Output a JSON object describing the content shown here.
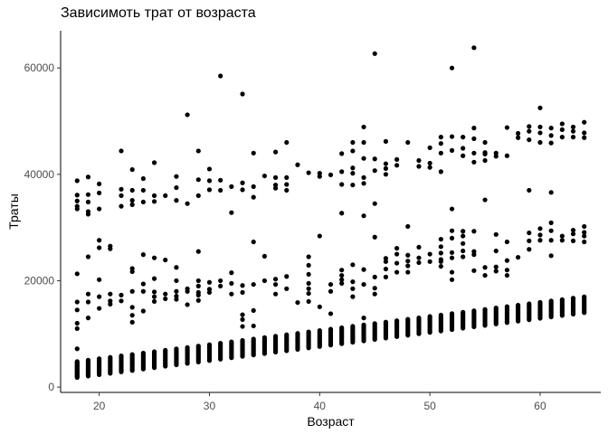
{
  "chart_data": {
    "type": "scatter",
    "title": "Зависимоть трат от возраста",
    "xlabel": "Возраст",
    "ylabel": "Траты",
    "xlim": [
      16.5,
      65.5
    ],
    "ylim": [
      -1000,
      67000
    ],
    "xticks": [
      20,
      30,
      40,
      50,
      60
    ],
    "yticks": [
      0,
      20000,
      40000,
      60000
    ],
    "xtick_labels": [
      "20",
      "30",
      "40",
      "50",
      "60"
    ],
    "ytick_labels": [
      "0",
      "20000",
      "40000",
      "60000"
    ],
    "grid": false,
    "point_color": "#000000",
    "x_range": [
      18,
      64
    ],
    "clusters": {
      "low": {
        "base_at_x18": 1800,
        "slope_per_year": 265,
        "spread": 3000
      },
      "mid": {
        "min": 10000,
        "max": 38000
      },
      "high": {
        "min": 32000,
        "max": 64000
      }
    },
    "points": [
      [
        18,
        7200
      ],
      [
        18,
        21300
      ],
      [
        18,
        16000
      ],
      [
        18,
        14500
      ],
      [
        18,
        12000
      ],
      [
        18,
        11000
      ],
      [
        18,
        38800
      ],
      [
        18,
        36100
      ],
      [
        18,
        35000
      ],
      [
        18,
        34000
      ],
      [
        18,
        33500
      ],
      [
        19,
        39500
      ],
      [
        19,
        36200
      ],
      [
        19,
        34800
      ],
      [
        19,
        33000
      ],
      [
        19,
        32500
      ],
      [
        19,
        24500
      ],
      [
        19,
        17500
      ],
      [
        19,
        16000
      ],
      [
        19,
        13000
      ],
      [
        20,
        38200
      ],
      [
        20,
        36500
      ],
      [
        20,
        33500
      ],
      [
        20,
        27600
      ],
      [
        20,
        26200
      ],
      [
        20,
        20200
      ],
      [
        20,
        17000
      ],
      [
        20,
        14800
      ],
      [
        21,
        26500
      ],
      [
        21,
        17500
      ],
      [
        21,
        16200
      ],
      [
        21,
        15600
      ],
      [
        21,
        26000
      ],
      [
        22,
        44400
      ],
      [
        22,
        37200
      ],
      [
        22,
        36000
      ],
      [
        22,
        34000
      ],
      [
        22,
        17300
      ],
      [
        22,
        16200
      ],
      [
        23,
        40900
      ],
      [
        23,
        37000
      ],
      [
        23,
        35100
      ],
      [
        23,
        34300
      ],
      [
        23,
        22300
      ],
      [
        23,
        21700
      ],
      [
        23,
        18000
      ],
      [
        23,
        15000
      ],
      [
        23,
        13500
      ],
      [
        23,
        12200
      ],
      [
        24,
        39200
      ],
      [
        24,
        37000
      ],
      [
        24,
        34800
      ],
      [
        24,
        24900
      ],
      [
        24,
        19400
      ],
      [
        24,
        18000
      ],
      [
        24,
        14300
      ],
      [
        25,
        42200
      ],
      [
        25,
        36000
      ],
      [
        25,
        34900
      ],
      [
        25,
        24300
      ],
      [
        25,
        20400
      ],
      [
        25,
        17900
      ],
      [
        25,
        17000
      ],
      [
        25,
        16100
      ],
      [
        26,
        36000
      ],
      [
        26,
        23900
      ],
      [
        26,
        17500
      ],
      [
        26,
        16600
      ],
      [
        27,
        39600
      ],
      [
        27,
        37500
      ],
      [
        27,
        35100
      ],
      [
        27,
        22500
      ],
      [
        27,
        20000
      ],
      [
        27,
        18000
      ],
      [
        27,
        17100
      ],
      [
        27,
        16500
      ],
      [
        28,
        51200
      ],
      [
        28,
        34500
      ],
      [
        28,
        18500
      ],
      [
        28,
        18000
      ],
      [
        28,
        15500
      ],
      [
        29,
        44400
      ],
      [
        29,
        39000
      ],
      [
        29,
        36000
      ],
      [
        29,
        25500
      ],
      [
        29,
        20000
      ],
      [
        29,
        19000
      ],
      [
        29,
        17800
      ],
      [
        29,
        17300
      ],
      [
        29,
        16300
      ],
      [
        30,
        41000
      ],
      [
        30,
        38800
      ],
      [
        30,
        37100
      ],
      [
        30,
        19700
      ],
      [
        30,
        18400
      ],
      [
        30,
        17800
      ],
      [
        31,
        58500
      ],
      [
        31,
        38900
      ],
      [
        31,
        37000
      ],
      [
        31,
        20000
      ],
      [
        31,
        19000
      ],
      [
        32,
        37700
      ],
      [
        32,
        32800
      ],
      [
        32,
        21500
      ],
      [
        32,
        19500
      ],
      [
        32,
        17500
      ],
      [
        33,
        55100
      ],
      [
        33,
        38400
      ],
      [
        33,
        37100
      ],
      [
        33,
        19100
      ],
      [
        33,
        17800
      ],
      [
        33,
        13600
      ],
      [
        33,
        12700
      ],
      [
        33,
        11400
      ],
      [
        34,
        44000
      ],
      [
        34,
        37700
      ],
      [
        34,
        35700
      ],
      [
        34,
        27300
      ],
      [
        34,
        19300
      ],
      [
        34,
        14400
      ],
      [
        34,
        11500
      ],
      [
        35,
        39700
      ],
      [
        35,
        24600
      ],
      [
        35,
        20000
      ],
      [
        36,
        44200
      ],
      [
        36,
        39400
      ],
      [
        36,
        38000
      ],
      [
        36,
        37400
      ],
      [
        36,
        20300
      ],
      [
        36,
        19300
      ],
      [
        36,
        17500
      ],
      [
        37,
        46000
      ],
      [
        37,
        39400
      ],
      [
        37,
        38100
      ],
      [
        37,
        37000
      ],
      [
        37,
        20800
      ],
      [
        37,
        18500
      ],
      [
        38,
        41800
      ],
      [
        38,
        15900
      ],
      [
        39,
        40300
      ],
      [
        39,
        24500
      ],
      [
        39,
        22900
      ],
      [
        39,
        21200
      ],
      [
        39,
        19500
      ],
      [
        39,
        18500
      ],
      [
        39,
        17600
      ],
      [
        39,
        16100
      ],
      [
        40,
        40200
      ],
      [
        40,
        39600
      ],
      [
        40,
        28400
      ],
      [
        40,
        15100
      ],
      [
        41,
        39900
      ],
      [
        41,
        19300
      ],
      [
        41,
        18000
      ],
      [
        41,
        13800
      ],
      [
        42,
        43900
      ],
      [
        42,
        40500
      ],
      [
        42,
        38100
      ],
      [
        42,
        32700
      ],
      [
        42,
        22000
      ],
      [
        42,
        21000
      ],
      [
        42,
        20200
      ],
      [
        42,
        19500
      ],
      [
        43,
        46000
      ],
      [
        43,
        44400
      ],
      [
        43,
        41200
      ],
      [
        43,
        40200
      ],
      [
        43,
        38000
      ],
      [
        43,
        23000
      ],
      [
        43,
        19800
      ],
      [
        43,
        18500
      ],
      [
        43,
        17000
      ],
      [
        44,
        48900
      ],
      [
        44,
        46000
      ],
      [
        44,
        43000
      ],
      [
        44,
        39400
      ],
      [
        44,
        38300
      ],
      [
        44,
        32200
      ],
      [
        44,
        22100
      ],
      [
        44,
        19300
      ],
      [
        44,
        13000
      ],
      [
        45,
        62700
      ],
      [
        45,
        42900
      ],
      [
        45,
        40700
      ],
      [
        45,
        34500
      ],
      [
        45,
        28200
      ],
      [
        45,
        20700
      ],
      [
        45,
        18600
      ],
      [
        45,
        17500
      ],
      [
        46,
        46200
      ],
      [
        46,
        42000
      ],
      [
        46,
        41100
      ],
      [
        46,
        40000
      ],
      [
        46,
        24200
      ],
      [
        46,
        23600
      ],
      [
        46,
        22200
      ],
      [
        46,
        20700
      ],
      [
        47,
        42800
      ],
      [
        47,
        41700
      ],
      [
        47,
        26100
      ],
      [
        47,
        25000
      ],
      [
        47,
        23300
      ],
      [
        47,
        21600
      ],
      [
        48,
        46000
      ],
      [
        48,
        30200
      ],
      [
        48,
        24800
      ],
      [
        48,
        23700
      ],
      [
        48,
        22800
      ],
      [
        48,
        21600
      ],
      [
        49,
        42600
      ],
      [
        49,
        41500
      ],
      [
        49,
        26300
      ],
      [
        49,
        24300
      ],
      [
        49,
        23400
      ],
      [
        50,
        45000
      ],
      [
        50,
        42100
      ],
      [
        50,
        41300
      ],
      [
        50,
        25000
      ],
      [
        50,
        23600
      ],
      [
        51,
        47000
      ],
      [
        51,
        45800
      ],
      [
        51,
        44000
      ],
      [
        51,
        40500
      ],
      [
        51,
        27800
      ],
      [
        51,
        26400
      ],
      [
        51,
        25200
      ],
      [
        51,
        24000
      ],
      [
        51,
        23600
      ],
      [
        51,
        22700
      ],
      [
        52,
        60000
      ],
      [
        52,
        47100
      ],
      [
        52,
        44500
      ],
      [
        52,
        33500
      ],
      [
        52,
        29400
      ],
      [
        52,
        28000
      ],
      [
        52,
        25300
      ],
      [
        52,
        24300
      ],
      [
        52,
        21600
      ],
      [
        52,
        20200
      ],
      [
        53,
        47000
      ],
      [
        53,
        44900
      ],
      [
        53,
        43500
      ],
      [
        53,
        29300
      ],
      [
        53,
        28400
      ],
      [
        53,
        27000
      ],
      [
        53,
        25600
      ],
      [
        53,
        24500
      ],
      [
        54,
        63800
      ],
      [
        54,
        48700
      ],
      [
        54,
        46700
      ],
      [
        54,
        44000
      ],
      [
        54,
        42300
      ],
      [
        54,
        29300
      ],
      [
        54,
        25500
      ],
      [
        54,
        24900
      ],
      [
        54,
        21900
      ],
      [
        55,
        46000
      ],
      [
        55,
        44100
      ],
      [
        55,
        43800
      ],
      [
        55,
        42600
      ],
      [
        55,
        35200
      ],
      [
        55,
        22500
      ],
      [
        55,
        21000
      ],
      [
        56,
        44000
      ],
      [
        56,
        43400
      ],
      [
        56,
        28700
      ],
      [
        56,
        25600
      ],
      [
        56,
        22600
      ],
      [
        56,
        21800
      ],
      [
        57,
        48800
      ],
      [
        57,
        43500
      ],
      [
        57,
        27300
      ],
      [
        57,
        23800
      ],
      [
        57,
        22000
      ],
      [
        57,
        21000
      ],
      [
        58,
        47700
      ],
      [
        58,
        46900
      ],
      [
        58,
        24400
      ],
      [
        59,
        49000
      ],
      [
        59,
        48100
      ],
      [
        59,
        46500
      ],
      [
        59,
        37000
      ],
      [
        59,
        29000
      ],
      [
        59,
        27500
      ],
      [
        59,
        25900
      ],
      [
        60,
        52500
      ],
      [
        60,
        48900
      ],
      [
        60,
        47800
      ],
      [
        60,
        46000
      ],
      [
        60,
        29800
      ],
      [
        60,
        28600
      ],
      [
        60,
        27600
      ],
      [
        61,
        48700
      ],
      [
        61,
        47300
      ],
      [
        61,
        45900
      ],
      [
        61,
        36600
      ],
      [
        61,
        30900
      ],
      [
        61,
        29400
      ],
      [
        61,
        27600
      ],
      [
        61,
        24700
      ],
      [
        62,
        49500
      ],
      [
        62,
        48400
      ],
      [
        62,
        47000
      ],
      [
        62,
        28400
      ],
      [
        62,
        27600
      ],
      [
        63,
        48900
      ],
      [
        63,
        48100
      ],
      [
        63,
        47000
      ],
      [
        63,
        29500
      ],
      [
        63,
        28800
      ],
      [
        63,
        27500
      ],
      [
        64,
        49800
      ],
      [
        64,
        47800
      ],
      [
        64,
        46900
      ],
      [
        64,
        30200
      ],
      [
        64,
        29100
      ],
      [
        64,
        28400
      ],
      [
        64,
        27300
      ]
    ]
  }
}
